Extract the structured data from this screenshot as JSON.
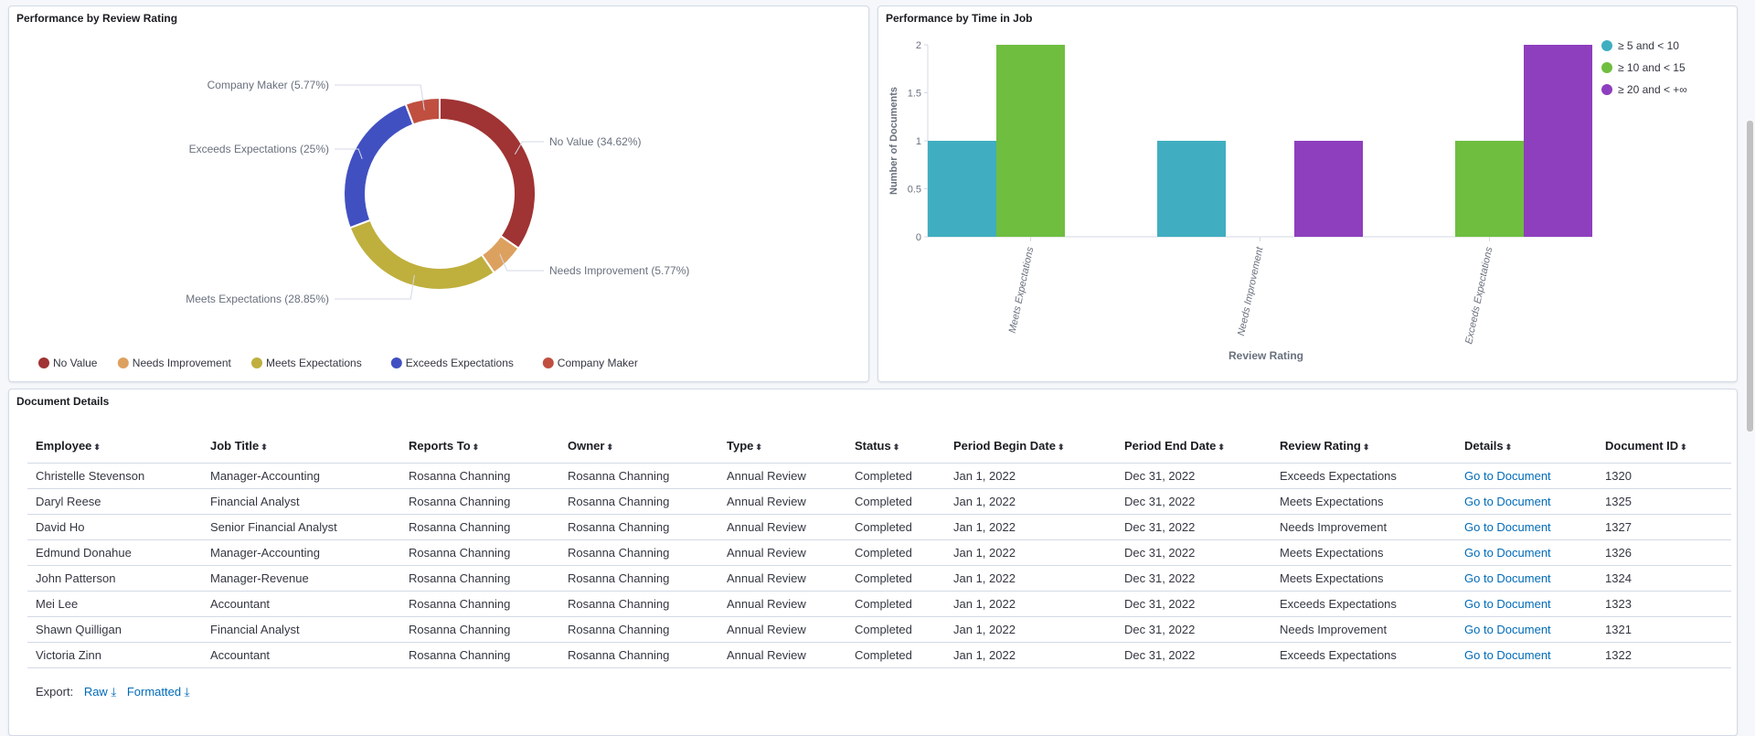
{
  "panels": {
    "donut_title": "Performance by Review Rating",
    "bar_title": "Performance by Time in Job",
    "table_title": "Document Details"
  },
  "chart_data": [
    {
      "type": "pie",
      "variant": "donut",
      "title": "Performance by Review Rating",
      "slices": [
        {
          "label": "No Value",
          "value": 34.62,
          "display": "No Value (34.62%)",
          "color": "#a03333"
        },
        {
          "label": "Needs Improvement",
          "value": 5.77,
          "display": "Needs Improvement (5.77%)",
          "color": "#dda15f"
        },
        {
          "label": "Meets Expectations",
          "value": 28.85,
          "display": "Meets Expectations (28.85%)",
          "color": "#bfaf3d"
        },
        {
          "label": "Exceeds Expectations",
          "value": 25,
          "display": "Exceeds Expectations (25%)",
          "color": "#4150c1"
        },
        {
          "label": "Company Maker",
          "value": 5.77,
          "display": "Company Maker (5.77%)",
          "color": "#c04f40"
        }
      ],
      "legend": "bottom"
    },
    {
      "type": "bar",
      "title": "Performance by Time in Job",
      "xlabel": "Review Rating",
      "ylabel": "Number of Documents",
      "categories": [
        "Meets Expectations",
        "Needs Improvement",
        "Exceeds Expectations"
      ],
      "ylim": [
        0,
        2
      ],
      "yticks": [
        "0",
        "0.5",
        "1",
        "1.5",
        "2"
      ],
      "series": [
        {
          "name": "≥ 5 and < 10",
          "values": [
            1,
            1,
            0
          ],
          "color": "#40aec0"
        },
        {
          "name": "≥ 10 and < 15",
          "values": [
            2,
            0,
            1
          ],
          "color": "#6fbe40"
        },
        {
          "name": "≥ 20 and < +∞",
          "values": [
            0,
            1,
            2
          ],
          "color": "#8e3fbd"
        }
      ],
      "legend": "top-right"
    }
  ],
  "table": {
    "columns": [
      "Employee",
      "Job Title",
      "Reports To",
      "Owner",
      "Type",
      "Status",
      "Period Begin Date",
      "Period End Date",
      "Review Rating",
      "Details",
      "Document ID"
    ],
    "rows": [
      [
        "Christelle Stevenson",
        "Manager-Accounting",
        "Rosanna Channing",
        "Rosanna Channing",
        "Annual Review",
        "Completed",
        "Jan 1, 2022",
        "Dec 31, 2022",
        "Exceeds Expectations",
        "Go to Document",
        "1320"
      ],
      [
        "Daryl Reese",
        "Financial Analyst",
        "Rosanna Channing",
        "Rosanna Channing",
        "Annual Review",
        "Completed",
        "Jan 1, 2022",
        "Dec 31, 2022",
        "Meets Expectations",
        "Go to Document",
        "1325"
      ],
      [
        "David Ho",
        "Senior Financial Analyst",
        "Rosanna Channing",
        "Rosanna Channing",
        "Annual Review",
        "Completed",
        "Jan 1, 2022",
        "Dec 31, 2022",
        "Needs Improvement",
        "Go to Document",
        "1327"
      ],
      [
        "Edmund Donahue",
        "Manager-Accounting",
        "Rosanna Channing",
        "Rosanna Channing",
        "Annual Review",
        "Completed",
        "Jan 1, 2022",
        "Dec 31, 2022",
        "Meets Expectations",
        "Go to Document",
        "1326"
      ],
      [
        "John Patterson",
        "Manager-Revenue",
        "Rosanna Channing",
        "Rosanna Channing",
        "Annual Review",
        "Completed",
        "Jan 1, 2022",
        "Dec 31, 2022",
        "Meets Expectations",
        "Go to Document",
        "1324"
      ],
      [
        "Mei Lee",
        "Accountant",
        "Rosanna Channing",
        "Rosanna Channing",
        "Annual Review",
        "Completed",
        "Jan 1, 2022",
        "Dec 31, 2022",
        "Exceeds Expectations",
        "Go to Document",
        "1323"
      ],
      [
        "Shawn Quilligan",
        "Financial Analyst",
        "Rosanna Channing",
        "Rosanna Channing",
        "Annual Review",
        "Completed",
        "Jan 1, 2022",
        "Dec 31, 2022",
        "Needs Improvement",
        "Go to Document",
        "1321"
      ],
      [
        "Victoria Zinn",
        "Accountant",
        "Rosanna Channing",
        "Rosanna Channing",
        "Annual Review",
        "Completed",
        "Jan 1, 2022",
        "Dec 31, 2022",
        "Exceeds Expectations",
        "Go to Document",
        "1322"
      ]
    ]
  },
  "export": {
    "label": "Export:",
    "raw": "Raw",
    "formatted": "Formatted"
  },
  "icons": {
    "sort": "sort-icon",
    "download": "download-icon"
  }
}
